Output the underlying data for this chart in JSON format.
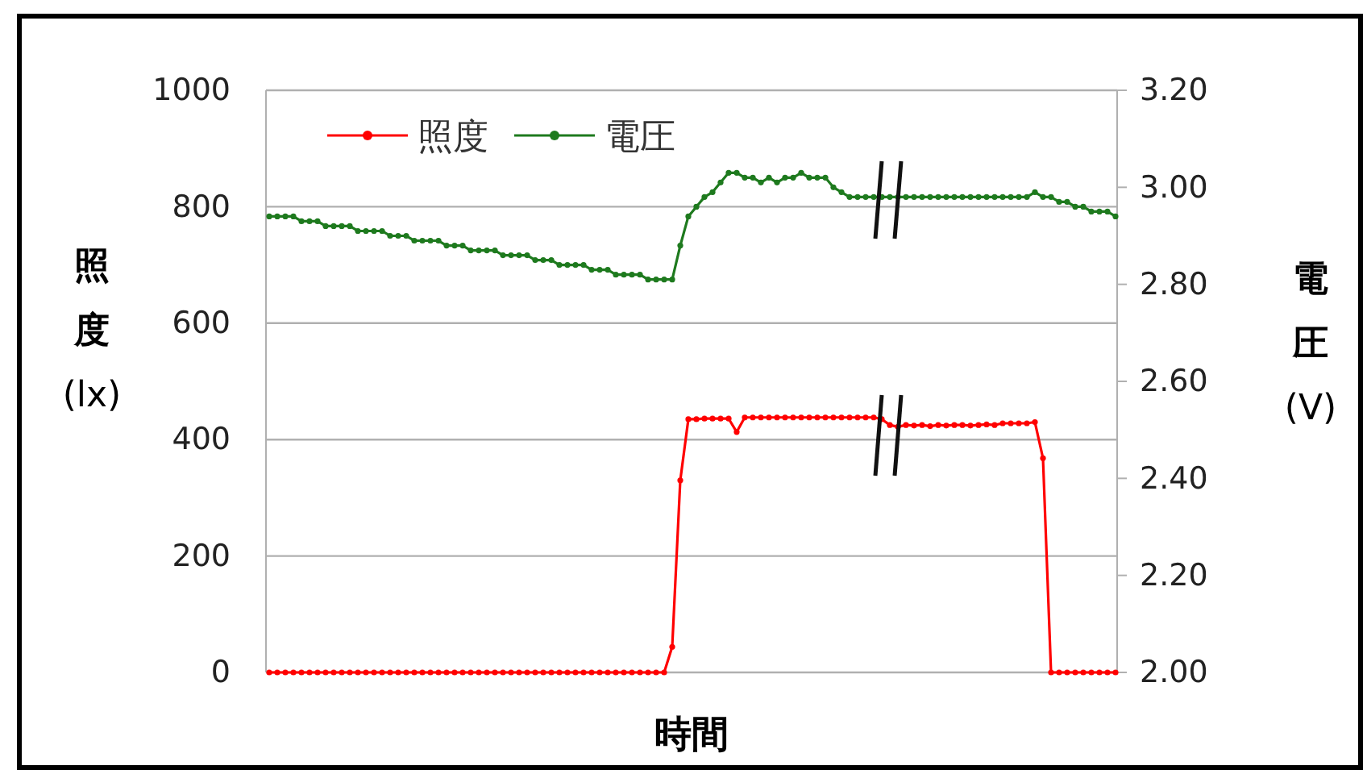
{
  "chart_data": {
    "type": "line",
    "xlabel": "時間",
    "ylabel": "照度 (lx)",
    "y2label": "電圧 (V)",
    "categories": [
      null,
      null,
      null,
      null,
      null,
      null,
      null,
      null,
      null,
      null,
      null,
      null,
      null,
      null,
      null,
      null,
      null,
      null,
      null,
      null,
      null,
      null,
      null,
      null,
      null,
      null,
      null,
      null,
      null,
      null,
      null,
      null,
      null,
      null,
      null,
      null,
      null,
      null,
      null,
      null,
      null,
      null,
      null,
      null,
      null,
      null,
      null,
      null,
      null,
      null,
      null,
      null,
      null,
      null,
      null,
      null,
      null,
      null,
      null,
      null,
      null,
      null,
      null,
      null,
      null,
      null,
      null,
      null,
      null,
      null,
      null,
      null,
      null,
      null,
      null,
      null,
      null,
      null,
      null,
      null,
      null,
      null,
      null,
      null,
      null,
      null,
      null,
      null,
      null,
      null,
      null,
      null,
      null,
      null,
      null,
      null,
      null,
      null,
      null,
      null,
      null,
      null,
      null,
      null,
      null,
      null
    ],
    "series": [
      {
        "name": "照度",
        "color": "#ff0000",
        "values": [
          0,
          0,
          0,
          0,
          0,
          0,
          0,
          0,
          0,
          0,
          0,
          0,
          0,
          0,
          0,
          0,
          0,
          0,
          0,
          0,
          0,
          0,
          0,
          0,
          0,
          0,
          0,
          0,
          0,
          0,
          0,
          0,
          0,
          0,
          0,
          0,
          0,
          0,
          0,
          0,
          0,
          0,
          0,
          0,
          0,
          0,
          0,
          0,
          0,
          0,
          44,
          330,
          435,
          435,
          436,
          436,
          436,
          436,
          413,
          438,
          438,
          438,
          438,
          438,
          438,
          438,
          438,
          438,
          438,
          438,
          438,
          438,
          438,
          438,
          438,
          438,
          435,
          425,
          422,
          425,
          424,
          425,
          423,
          425,
          424,
          425,
          425,
          424,
          425,
          426,
          425,
          428,
          428,
          428,
          428,
          430,
          368,
          0,
          0,
          0,
          0,
          0,
          0,
          0,
          0,
          0
        ]
      },
      {
        "name": "電圧",
        "color": "#1e7a1e",
        "axis": "y2",
        "values": [
          2.94,
          2.94,
          2.94,
          2.94,
          2.93,
          2.93,
          2.93,
          2.92,
          2.92,
          2.92,
          2.92,
          2.91,
          2.91,
          2.91,
          2.91,
          2.9,
          2.9,
          2.9,
          2.89,
          2.89,
          2.89,
          2.89,
          2.88,
          2.88,
          2.88,
          2.87,
          2.87,
          2.87,
          2.87,
          2.86,
          2.86,
          2.86,
          2.86,
          2.85,
          2.85,
          2.85,
          2.84,
          2.84,
          2.84,
          2.84,
          2.83,
          2.83,
          2.83,
          2.82,
          2.82,
          2.82,
          2.82,
          2.81,
          2.81,
          2.81,
          2.81,
          2.88,
          2.94,
          2.96,
          2.98,
          2.99,
          3.01,
          3.03,
          3.03,
          3.02,
          3.02,
          3.01,
          3.02,
          3.01,
          3.02,
          3.02,
          3.03,
          3.02,
          3.02,
          3.02,
          3.0,
          2.99,
          2.98,
          2.98,
          2.98,
          2.98,
          2.98,
          2.98,
          2.98,
          2.98,
          2.98,
          2.98,
          2.98,
          2.98,
          2.98,
          2.98,
          2.98,
          2.98,
          2.98,
          2.98,
          2.98,
          2.98,
          2.98,
          2.98,
          2.98,
          2.99,
          2.98,
          2.98,
          2.97,
          2.97,
          2.96,
          2.96,
          2.95,
          2.95,
          2.95,
          2.94
        ]
      }
    ],
    "ylim": [
      0,
      1000
    ],
    "yticks": [
      0,
      200,
      400,
      600,
      800,
      1000
    ],
    "y2lim": [
      2,
      3.2
    ],
    "y2ticks": [
      {
        "value": 2,
        "label": "2.00"
      },
      {
        "value": 2.2,
        "label": "2.20"
      },
      {
        "value": 2.4,
        "label": "2.40"
      },
      {
        "value": 2.6,
        "label": "2.60"
      },
      {
        "value": 2.8,
        "label": "2.80"
      },
      {
        "value": 3,
        "label": "3.00"
      },
      {
        "value": 3.2,
        "label": "3.20"
      }
    ],
    "grid": "y",
    "legend": "top left",
    "marker": "circle",
    "line_style": "solid"
  }
}
